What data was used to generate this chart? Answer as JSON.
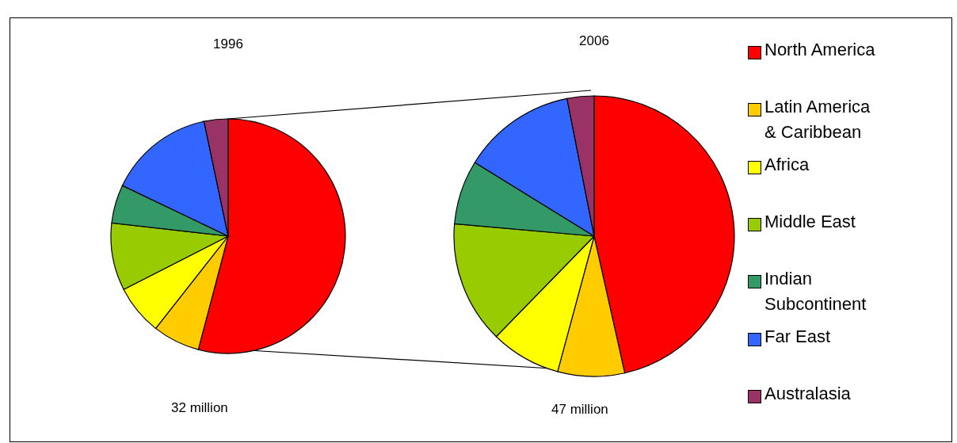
{
  "chart_data": {
    "type": "pie",
    "categories": [
      "North America",
      "Latin America & Caribbean",
      "Africa",
      "Middle East",
      "Indian Subcontinent",
      "Far East",
      "Australasia"
    ],
    "colors": [
      "#ff0000",
      "#ffcc00",
      "#ffff00",
      "#99cc00",
      "#339966",
      "#3366ff",
      "#993366"
    ],
    "series": [
      {
        "name": "1996",
        "values": [
          54.1,
          6.5,
          6.9,
          9.3,
          5.3,
          14.6,
          3.3
        ]
      },
      {
        "name": "2006",
        "values": [
          46.5,
          7.7,
          8.1,
          14.1,
          7.4,
          13.1,
          3.1
        ]
      }
    ],
    "annotations": [
      "32 million",
      "47 million"
    ],
    "legend": "right"
  }
}
